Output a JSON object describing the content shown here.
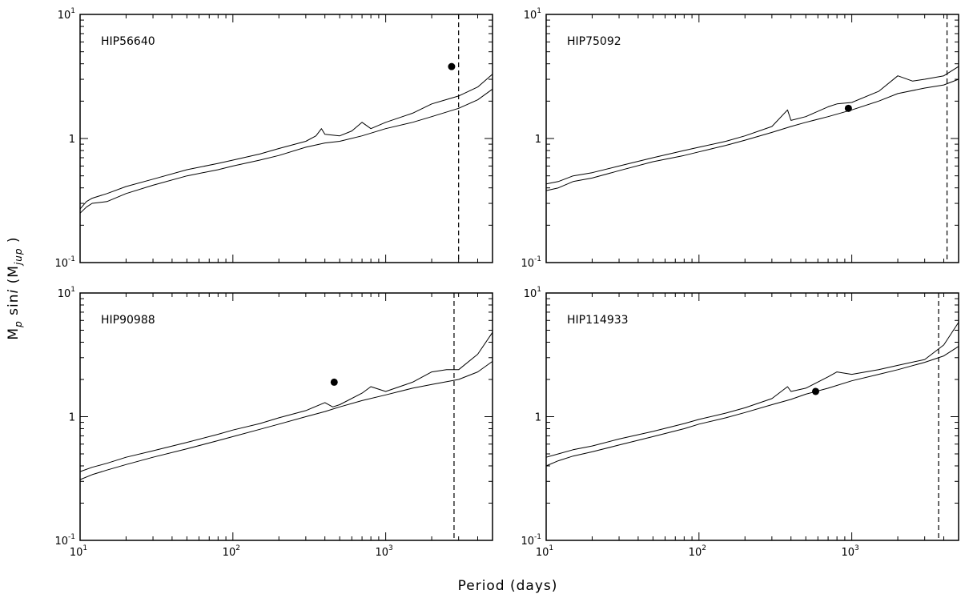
{
  "figure": {
    "xlabel": "Period (days)",
    "ylabel_main": "M",
    "ylabel_sub": "p",
    "ylabel_mid": " sin",
    "ylabel_i": "i",
    "ylabel_paren_open": " (M",
    "ylabel_unit_sub": "jup",
    "ylabel_paren_close": " )"
  },
  "chart_data": [
    {
      "type": "line",
      "label": "HIP56640",
      "xscale": "log",
      "yscale": "log",
      "xlim": [
        10,
        5000
      ],
      "ylim": [
        0.1,
        10
      ],
      "xticks": [
        {
          "base": "10",
          "exp": "1"
        },
        {
          "base": "10",
          "exp": "2"
        },
        {
          "base": "10",
          "exp": "3"
        }
      ],
      "yticks": [
        {
          "base": "10",
          "exp": "-1"
        },
        {
          "base": "1",
          "exp": ""
        },
        {
          "base": "10",
          "exp": "1"
        }
      ],
      "vline_x": 3000,
      "planet": {
        "x": 2700,
        "y": 3.8
      },
      "series": [
        {
          "points": [
            [
              10,
              0.27
            ],
            [
              11,
              0.31
            ],
            [
              12,
              0.33
            ],
            [
              15,
              0.36
            ],
            [
              20,
              0.41
            ],
            [
              30,
              0.47
            ],
            [
              50,
              0.56
            ],
            [
              80,
              0.63
            ],
            [
              100,
              0.67
            ],
            [
              150,
              0.75
            ],
            [
              200,
              0.83
            ],
            [
              300,
              0.95
            ],
            [
              350,
              1.05
            ],
            [
              380,
              1.2
            ],
            [
              400,
              1.08
            ],
            [
              500,
              1.05
            ],
            [
              600,
              1.15
            ],
            [
              700,
              1.35
            ],
            [
              800,
              1.2
            ],
            [
              1000,
              1.35
            ],
            [
              1500,
              1.6
            ],
            [
              2000,
              1.9
            ],
            [
              3000,
              2.2
            ],
            [
              4000,
              2.6
            ],
            [
              5000,
              3.3
            ]
          ]
        },
        {
          "points": [
            [
              10,
              0.25
            ],
            [
              11,
              0.28
            ],
            [
              12,
              0.3
            ],
            [
              15,
              0.31
            ],
            [
              20,
              0.36
            ],
            [
              30,
              0.42
            ],
            [
              50,
              0.5
            ],
            [
              80,
              0.56
            ],
            [
              100,
              0.6
            ],
            [
              150,
              0.67
            ],
            [
              200,
              0.73
            ],
            [
              300,
              0.85
            ],
            [
              400,
              0.92
            ],
            [
              500,
              0.95
            ],
            [
              700,
              1.05
            ],
            [
              1000,
              1.2
            ],
            [
              1500,
              1.35
            ],
            [
              2000,
              1.5
            ],
            [
              3000,
              1.75
            ],
            [
              4000,
              2.05
            ],
            [
              5000,
              2.5
            ]
          ]
        }
      ]
    },
    {
      "type": "line",
      "label": "HIP75092",
      "xscale": "log",
      "yscale": "log",
      "xlim": [
        10,
        5000
      ],
      "ylim": [
        0.1,
        10
      ],
      "xticks": [
        {
          "base": "10",
          "exp": "1"
        },
        {
          "base": "10",
          "exp": "2"
        },
        {
          "base": "10",
          "exp": "3"
        }
      ],
      "yticks": [
        {
          "base": "10",
          "exp": "-1"
        },
        {
          "base": "1",
          "exp": ""
        },
        {
          "base": "10",
          "exp": "1"
        }
      ],
      "vline_x": 4200,
      "planet": {
        "x": 950,
        "y": 1.75
      },
      "series": [
        {
          "points": [
            [
              10,
              0.43
            ],
            [
              12,
              0.45
            ],
            [
              15,
              0.5
            ],
            [
              20,
              0.53
            ],
            [
              30,
              0.6
            ],
            [
              50,
              0.7
            ],
            [
              80,
              0.8
            ],
            [
              100,
              0.85
            ],
            [
              150,
              0.95
            ],
            [
              200,
              1.05
            ],
            [
              300,
              1.25
            ],
            [
              380,
              1.7
            ],
            [
              400,
              1.4
            ],
            [
              500,
              1.5
            ],
            [
              700,
              1.8
            ],
            [
              800,
              1.9
            ],
            [
              1000,
              1.95
            ],
            [
              1500,
              2.4
            ],
            [
              2000,
              3.2
            ],
            [
              2500,
              2.9
            ],
            [
              3000,
              3.0
            ],
            [
              4000,
              3.2
            ],
            [
              5000,
              3.8
            ]
          ]
        },
        {
          "points": [
            [
              10,
              0.38
            ],
            [
              12,
              0.4
            ],
            [
              15,
              0.45
            ],
            [
              20,
              0.48
            ],
            [
              30,
              0.55
            ],
            [
              50,
              0.65
            ],
            [
              80,
              0.73
            ],
            [
              100,
              0.78
            ],
            [
              150,
              0.88
            ],
            [
              200,
              0.97
            ],
            [
              300,
              1.12
            ],
            [
              400,
              1.25
            ],
            [
              500,
              1.35
            ],
            [
              700,
              1.5
            ],
            [
              1000,
              1.7
            ],
            [
              1500,
              2.0
            ],
            [
              2000,
              2.3
            ],
            [
              3000,
              2.55
            ],
            [
              4000,
              2.7
            ],
            [
              5000,
              3.0
            ]
          ]
        }
      ]
    },
    {
      "type": "line",
      "label": "HIP90988",
      "xscale": "log",
      "yscale": "log",
      "xlim": [
        10,
        5000
      ],
      "ylim": [
        0.1,
        10
      ],
      "xticks": [
        {
          "base": "10",
          "exp": "1"
        },
        {
          "base": "10",
          "exp": "2"
        },
        {
          "base": "10",
          "exp": "3"
        }
      ],
      "yticks": [
        {
          "base": "10",
          "exp": "-1"
        },
        {
          "base": "1",
          "exp": ""
        },
        {
          "base": "10",
          "exp": "1"
        }
      ],
      "vline_x": 2800,
      "planet": {
        "x": 460,
        "y": 1.9
      },
      "series": [
        {
          "points": [
            [
              10,
              0.36
            ],
            [
              12,
              0.39
            ],
            [
              15,
              0.42
            ],
            [
              20,
              0.47
            ],
            [
              30,
              0.53
            ],
            [
              50,
              0.62
            ],
            [
              80,
              0.72
            ],
            [
              100,
              0.78
            ],
            [
              150,
              0.88
            ],
            [
              200,
              0.98
            ],
            [
              300,
              1.12
            ],
            [
              400,
              1.3
            ],
            [
              450,
              1.2
            ],
            [
              500,
              1.25
            ],
            [
              700,
              1.55
            ],
            [
              800,
              1.75
            ],
            [
              1000,
              1.6
            ],
            [
              1500,
              1.9
            ],
            [
              2000,
              2.3
            ],
            [
              2500,
              2.4
            ],
            [
              3000,
              2.4
            ],
            [
              4000,
              3.2
            ],
            [
              5000,
              4.8
            ]
          ]
        },
        {
          "points": [
            [
              10,
              0.31
            ],
            [
              12,
              0.34
            ],
            [
              15,
              0.37
            ],
            [
              20,
              0.41
            ],
            [
              30,
              0.47
            ],
            [
              50,
              0.55
            ],
            [
              80,
              0.64
            ],
            [
              100,
              0.69
            ],
            [
              150,
              0.79
            ],
            [
              200,
              0.87
            ],
            [
              300,
              1.0
            ],
            [
              400,
              1.1
            ],
            [
              500,
              1.2
            ],
            [
              700,
              1.35
            ],
            [
              1000,
              1.5
            ],
            [
              1500,
              1.7
            ],
            [
              2000,
              1.82
            ],
            [
              3000,
              2.0
            ],
            [
              4000,
              2.3
            ],
            [
              5000,
              2.8
            ]
          ]
        }
      ]
    },
    {
      "type": "line",
      "label": "HIP114933",
      "xscale": "log",
      "yscale": "log",
      "xlim": [
        10,
        5000
      ],
      "ylim": [
        0.1,
        10
      ],
      "xticks": [
        {
          "base": "10",
          "exp": "1"
        },
        {
          "base": "10",
          "exp": "2"
        },
        {
          "base": "10",
          "exp": "3"
        }
      ],
      "yticks": [
        {
          "base": "10",
          "exp": "-1"
        },
        {
          "base": "1",
          "exp": ""
        },
        {
          "base": "10",
          "exp": "1"
        }
      ],
      "vline_x": 3700,
      "planet": {
        "x": 580,
        "y": 1.6
      },
      "series": [
        {
          "points": [
            [
              10,
              0.47
            ],
            [
              12,
              0.5
            ],
            [
              15,
              0.54
            ],
            [
              20,
              0.58
            ],
            [
              30,
              0.66
            ],
            [
              50,
              0.76
            ],
            [
              80,
              0.88
            ],
            [
              100,
              0.95
            ],
            [
              150,
              1.07
            ],
            [
              200,
              1.18
            ],
            [
              300,
              1.4
            ],
            [
              380,
              1.75
            ],
            [
              400,
              1.6
            ],
            [
              500,
              1.7
            ],
            [
              700,
              2.1
            ],
            [
              800,
              2.3
            ],
            [
              1000,
              2.2
            ],
            [
              1500,
              2.4
            ],
            [
              2000,
              2.6
            ],
            [
              3000,
              2.9
            ],
            [
              4000,
              3.8
            ],
            [
              5000,
              5.8
            ]
          ]
        },
        {
          "points": [
            [
              10,
              0.4
            ],
            [
              12,
              0.44
            ],
            [
              15,
              0.48
            ],
            [
              20,
              0.52
            ],
            [
              30,
              0.59
            ],
            [
              50,
              0.69
            ],
            [
              80,
              0.8
            ],
            [
              100,
              0.87
            ],
            [
              150,
              0.98
            ],
            [
              200,
              1.08
            ],
            [
              300,
              1.25
            ],
            [
              400,
              1.38
            ],
            [
              500,
              1.52
            ],
            [
              700,
              1.7
            ],
            [
              1000,
              1.95
            ],
            [
              1500,
              2.2
            ],
            [
              2000,
              2.4
            ],
            [
              3000,
              2.75
            ],
            [
              4000,
              3.1
            ],
            [
              5000,
              3.7
            ]
          ]
        }
      ]
    }
  ]
}
